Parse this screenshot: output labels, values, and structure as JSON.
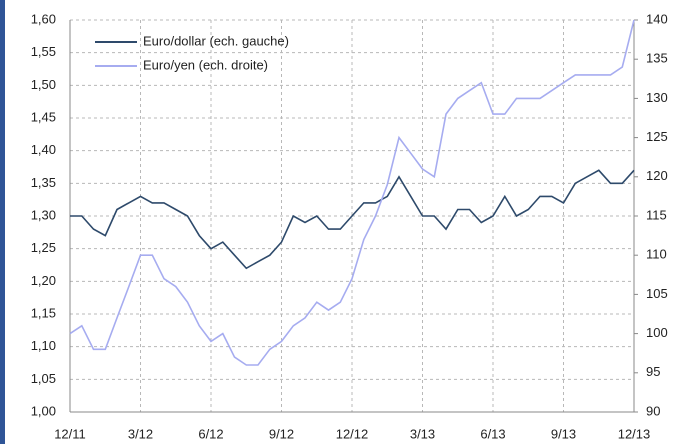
{
  "chart_data": {
    "type": "line",
    "categories": [
      "12/11",
      null,
      null,
      null,
      null,
      null,
      "3/12",
      null,
      null,
      null,
      null,
      null,
      "6/12",
      null,
      null,
      null,
      null,
      null,
      "9/12",
      null,
      null,
      null,
      null,
      null,
      "12/12",
      null,
      null,
      null,
      null,
      null,
      "3/13",
      null,
      null,
      null,
      null,
      null,
      "6/13",
      null,
      null,
      null,
      null,
      null,
      "9/13",
      null,
      null,
      null,
      null,
      null,
      "12/13"
    ],
    "series": [
      {
        "name": "Euro/dollar (ech. gauche)",
        "color": "#2e4a6b",
        "axis": "y",
        "values": [
          1.3,
          1.3,
          1.28,
          1.27,
          1.31,
          1.32,
          1.33,
          1.32,
          1.32,
          1.31,
          1.3,
          1.27,
          1.25,
          1.26,
          1.24,
          1.22,
          1.23,
          1.24,
          1.26,
          1.3,
          1.29,
          1.3,
          1.28,
          1.28,
          1.3,
          1.32,
          1.32,
          1.33,
          1.36,
          1.33,
          1.3,
          1.3,
          1.28,
          1.31,
          1.31,
          1.29,
          1.3,
          1.33,
          1.3,
          1.31,
          1.33,
          1.33,
          1.32,
          1.35,
          1.36,
          1.37,
          1.35,
          1.35,
          1.37
        ]
      },
      {
        "name": "Euro/yen (ech. droite)",
        "color": "#a6acf0",
        "axis": "y2",
        "values": [
          100,
          101,
          98,
          98,
          102,
          106,
          110,
          110,
          107,
          106,
          104,
          101,
          99,
          100,
          97,
          96,
          96,
          98,
          99,
          101,
          102,
          104,
          103,
          104,
          107,
          112,
          115,
          119,
          125,
          123,
          121,
          120,
          128,
          130,
          131,
          132,
          128,
          128,
          130,
          130,
          130,
          131,
          132,
          133,
          133,
          133,
          133,
          134,
          140
        ]
      }
    ],
    "ylim": [
      1.0,
      1.6
    ],
    "yticks": [
      {
        "value": 1.0,
        "label": "1,00"
      },
      {
        "value": 1.05,
        "label": "1,05"
      },
      {
        "value": 1.1,
        "label": "1,10"
      },
      {
        "value": 1.15,
        "label": "1,15"
      },
      {
        "value": 1.2,
        "label": "1,20"
      },
      {
        "value": 1.25,
        "label": "1,25"
      },
      {
        "value": 1.3,
        "label": "1,30"
      },
      {
        "value": 1.35,
        "label": "1,35"
      },
      {
        "value": 1.4,
        "label": "1,40"
      },
      {
        "value": 1.45,
        "label": "1,45"
      },
      {
        "value": 1.5,
        "label": "1,50"
      },
      {
        "value": 1.55,
        "label": "1,55"
      },
      {
        "value": 1.6,
        "label": "1,60"
      }
    ],
    "y2lim": [
      90,
      140
    ],
    "y2ticks": [
      90,
      95,
      100,
      105,
      110,
      115,
      120,
      125,
      130,
      135,
      140
    ],
    "grid": true,
    "legend": "top-left"
  }
}
